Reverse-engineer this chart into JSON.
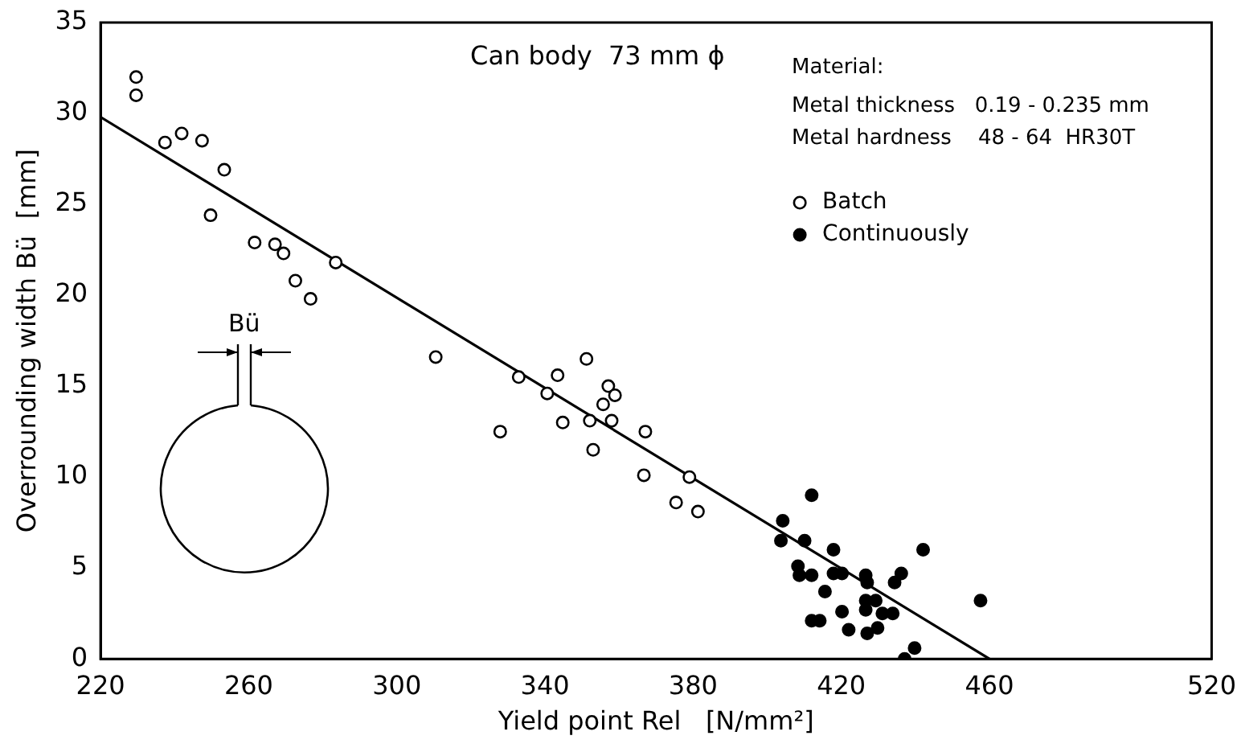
{
  "chart_data": {
    "type": "scatter",
    "xlabel": "Yield point Rel   [N/mm²]",
    "ylabel": "Overrounding width Bü  [mm]",
    "xlim": [
      220,
      520
    ],
    "xticks": [
      220,
      260,
      300,
      340,
      380,
      420,
      460,
      520
    ],
    "ylim": [
      0,
      35
    ],
    "yticks": [
      0,
      5,
      10,
      15,
      20,
      25,
      30,
      35
    ],
    "grid": false,
    "legend": "top right",
    "marker": "circle",
    "annotations": [
      "Can body  73 mm ϕ",
      "Material:",
      "Metal thickness   0.19 - 0.235 mm",
      "Metal hardness    48 - 64  HR30T",
      "Bü"
    ],
    "series": [
      {
        "name": "Batch",
        "color": "#000000",
        "x": [
          229.6,
          229.6,
          237.4,
          241.9,
          247.4,
          253.4,
          249.7,
          261.6,
          267.1,
          269.4,
          272.6,
          276.7,
          283.5,
          310.5,
          332.9,
          351.2,
          343.4,
          340.6,
          357.1,
          358.9,
          355.7,
          327.9,
          344.8,
          352.1,
          358.0,
          367.1,
          353.0,
          366.7,
          379.0,
          375.4,
          381.3
        ],
        "values": [
          32.0,
          31.0,
          28.4,
          28.9,
          28.5,
          26.9,
          24.4,
          22.9,
          22.8,
          22.3,
          20.8,
          19.8,
          21.8,
          16.6,
          15.5,
          16.5,
          15.6,
          14.6,
          15.0,
          14.5,
          14.0,
          12.5,
          13.0,
          13.1,
          13.1,
          12.5,
          11.5,
          10.1,
          10.0,
          8.6,
          8.1
        ]
      },
      {
        "name": "Continuously",
        "color": "#000000",
        "x": [
          412.0,
          404.2,
          403.7,
          410.1,
          417.9,
          442.1,
          408.3,
          408.7,
          412.0,
          417.9,
          420.2,
          426.6,
          427.0,
          436.2,
          434.4,
          415.6,
          426.6,
          429.3,
          426.6,
          431.1,
          433.9,
          420.2,
          412.0,
          414.2,
          422.0,
          429.8,
          427.0,
          439.8,
          437.1,
          457.6
        ],
        "values": [
          9.0,
          7.6,
          6.5,
          6.5,
          6.0,
          6.0,
          5.1,
          4.6,
          4.6,
          4.7,
          4.7,
          4.6,
          4.2,
          4.7,
          4.2,
          3.7,
          3.2,
          3.2,
          2.7,
          2.5,
          2.5,
          2.6,
          2.1,
          2.1,
          1.6,
          1.7,
          1.4,
          0.6,
          0.0,
          3.2
        ]
      },
      {
        "type": "line",
        "color": "#000000",
        "line_style": "solid",
        "marker": "none",
        "x": [
          220,
          460
        ],
        "values": [
          29.8,
          0
        ]
      }
    ]
  }
}
